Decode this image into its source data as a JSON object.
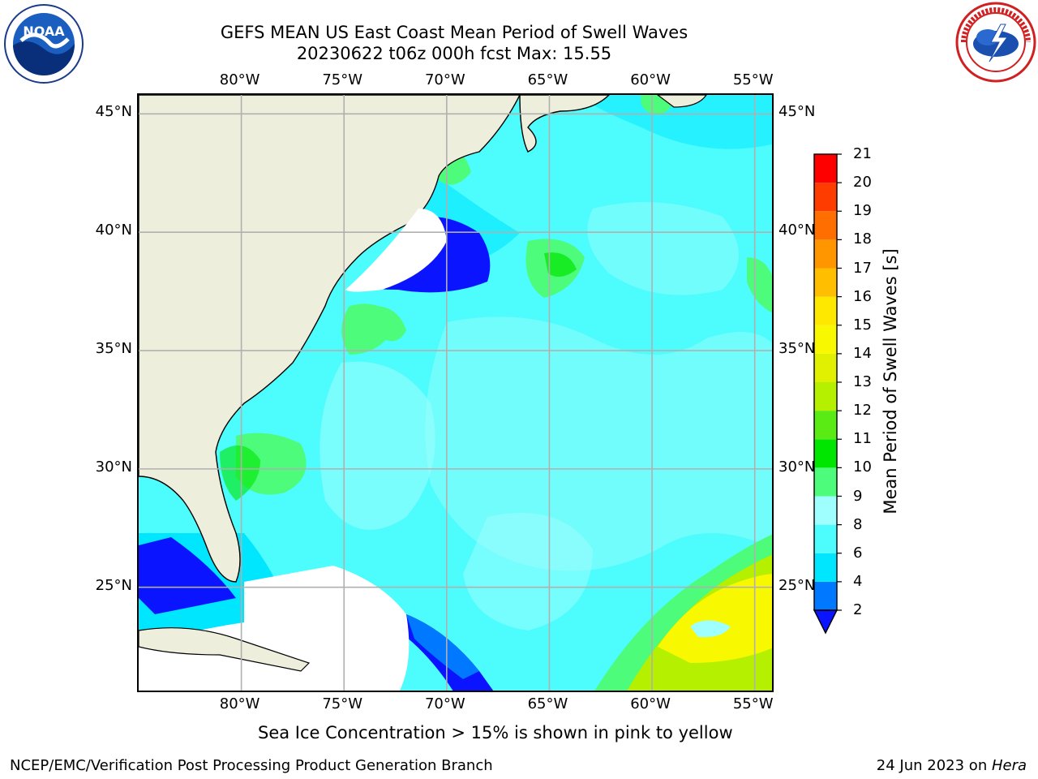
{
  "title_line1": "GEFS MEAN US East Coast Mean Period of Swell Waves",
  "title_line2": "20230622 t06z 000h fcst   Max: 15.55",
  "logos": {
    "left": "noaa-logo",
    "left_text": "NOAA",
    "right": "nws-logo"
  },
  "map": {
    "projection": "lat-lon",
    "lon_range": [
      -85,
      -54
    ],
    "lat_range": [
      20.5,
      45.8
    ],
    "land_color": "#eeeedc",
    "masked_color": "#ffffff",
    "grid_color": "#b0b0b0",
    "lon_ticks": [
      "80°W",
      "75°W",
      "70°W",
      "65°W",
      "60°W",
      "55°W"
    ],
    "lat_ticks": [
      "45°N",
      "40°N",
      "35°N",
      "30°N",
      "25°N"
    ]
  },
  "colorbar": {
    "label": "Mean Period of Swell Waves [s]",
    "ticks": [
      "2",
      "4",
      "6",
      "8",
      "9",
      "10",
      "11",
      "12",
      "13",
      "14",
      "15",
      "16",
      "17",
      "18",
      "19",
      "20",
      "21"
    ],
    "colors": [
      "#0078ff",
      "#00e6ff",
      "#4dfcfc",
      "#9ffefe",
      "#4dfc7a",
      "#00e600",
      "#5aea14",
      "#b4f000",
      "#e0f000",
      "#f8f800",
      "#ffe800",
      "#ffbe00",
      "#ff9600",
      "#ff6e00",
      "#ff3c00",
      "#ff0000"
    ],
    "under_color": "#0a14ff"
  },
  "footnote": "Sea Ice Concentration > 15% is shown in pink to yellow",
  "credit": "NCEP/EMC/Verification Post Processing Product Generation Branch",
  "date_prefix": "24 Jun 2023 on ",
  "date_machine": "Hera"
}
